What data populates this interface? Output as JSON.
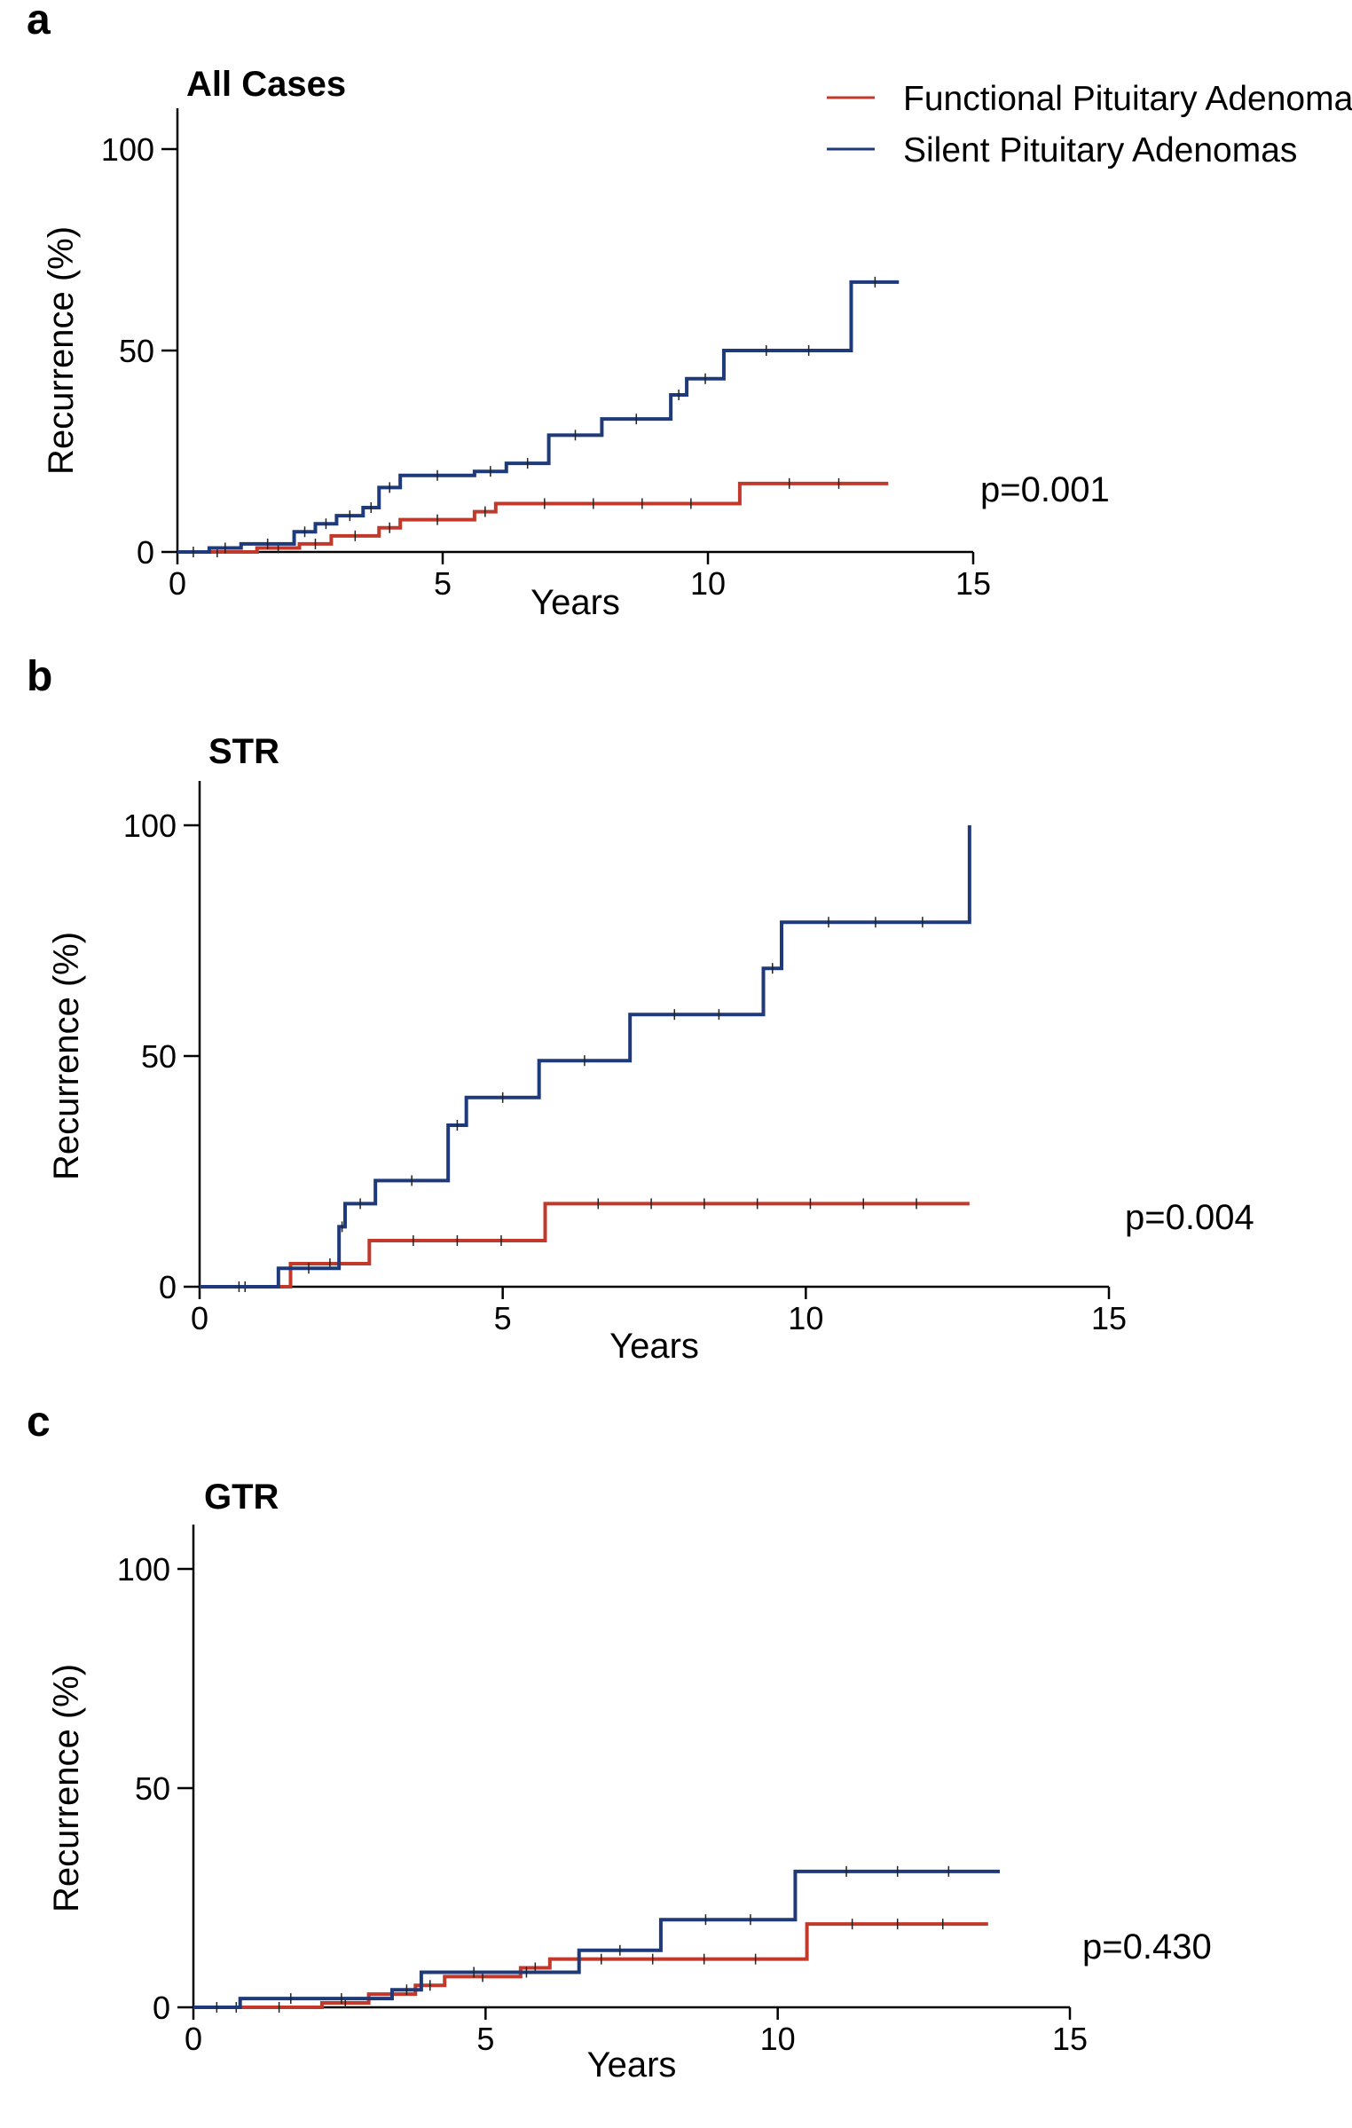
{
  "colors": {
    "functional": "#c0392b",
    "silent": "#1f3a7a"
  },
  "legend": {
    "items": [
      {
        "label": "Functional Pituitary Adenomas",
        "color": "#c0392b"
      },
      {
        "label": "Silent Pituitary Adenomas",
        "color": "#1f3a7a"
      }
    ]
  },
  "chart_data": [
    {
      "panel": "a",
      "type": "line",
      "title": "All Cases",
      "xlabel": "Years",
      "ylabel": "Recurrence (%)",
      "xlim": [
        0,
        15
      ],
      "ylim": [
        0,
        110
      ],
      "xticks": [
        0,
        5,
        10,
        15
      ],
      "yticks": [
        0,
        50,
        100
      ],
      "p_value": "p=0.001",
      "series": [
        {
          "name": "Functional Pituitary Adenomas",
          "color": "#c0392b",
          "x": [
            0,
            1.5,
            2.3,
            2.9,
            3.8,
            4.2,
            5.6,
            6.0,
            10.6,
            13.4
          ],
          "y": [
            0,
            1,
            2,
            4,
            6,
            8,
            10,
            12,
            17,
            17
          ]
        },
        {
          "name": "Silent Pituitary Adenomas",
          "color": "#1f3a7a",
          "x": [
            0,
            0.6,
            1.2,
            2.2,
            2.6,
            3.0,
            3.5,
            3.8,
            4.2,
            5.6,
            6.2,
            7.0,
            8.0,
            9.3,
            9.6,
            10.3,
            12.7,
            13.6
          ],
          "y": [
            0,
            1,
            2,
            5,
            7,
            9,
            11,
            16,
            19,
            20,
            22,
            29,
            33,
            39,
            43,
            50,
            67,
            67
          ]
        }
      ]
    },
    {
      "panel": "b",
      "type": "line",
      "title": "STR",
      "xlabel": "Years",
      "ylabel": "Recurrence (%)",
      "xlim": [
        0,
        15
      ],
      "ylim": [
        0,
        110
      ],
      "xticks": [
        0,
        5,
        10,
        15
      ],
      "yticks": [
        0,
        50,
        100
      ],
      "p_value": "p=0.004",
      "series": [
        {
          "name": "Functional Pituitary Adenomas",
          "color": "#c0392b",
          "x": [
            0,
            1.5,
            2.8,
            5.7,
            12.7
          ],
          "y": [
            0,
            5,
            10,
            18,
            18
          ]
        },
        {
          "name": "Silent Pituitary Adenomas",
          "color": "#1f3a7a",
          "x": [
            0,
            1.3,
            2.3,
            2.4,
            2.9,
            4.1,
            4.4,
            5.6,
            7.1,
            9.3,
            9.6,
            12.7
          ],
          "y": [
            0,
            4,
            13,
            18,
            23,
            35,
            41,
            49,
            59,
            69,
            79,
            100
          ]
        }
      ]
    },
    {
      "panel": "c",
      "type": "line",
      "title": "GTR",
      "xlabel": "Years",
      "ylabel": "Recurrence (%)",
      "xlim": [
        0,
        15
      ],
      "ylim": [
        0,
        110
      ],
      "xticks": [
        0,
        5,
        10,
        15
      ],
      "yticks": [
        0,
        50,
        100
      ],
      "p_value": "p=0.430",
      "series": [
        {
          "name": "Functional Pituitary Adenomas",
          "color": "#c0392b",
          "x": [
            0,
            2.2,
            3.0,
            3.8,
            4.3,
            5.6,
            6.1,
            10.5,
            13.6
          ],
          "y": [
            0,
            1,
            3,
            5,
            7,
            9,
            11,
            19,
            19
          ]
        },
        {
          "name": "Silent Pituitary Adenomas",
          "color": "#1f3a7a",
          "x": [
            0,
            0.8,
            3.4,
            3.9,
            6.6,
            8.0,
            10.3,
            13.8
          ],
          "y": [
            0,
            2,
            4,
            8,
            13,
            20,
            31,
            31
          ]
        }
      ]
    }
  ]
}
